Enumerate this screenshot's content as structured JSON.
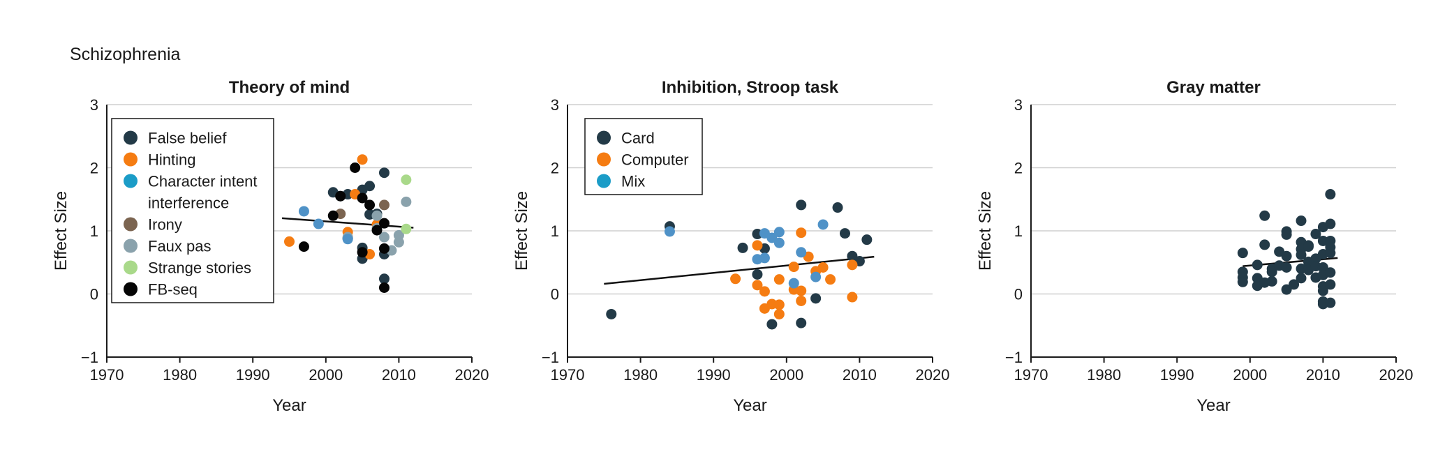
{
  "figure": {
    "label": "Schizophrenia"
  },
  "chart_data": [
    {
      "type": "scatter",
      "title": "Theory of mind",
      "xlabel": "Year",
      "ylabel": "Effect Size",
      "xlim": [
        1970,
        2020
      ],
      "ylim": [
        -1,
        3
      ],
      "xticks": [
        1970,
        1980,
        1990,
        2000,
        2010,
        2020
      ],
      "yticks": [
        -1,
        0,
        1,
        2,
        3
      ],
      "grid": "horizontal",
      "legend": "top-left, boxed",
      "series": [
        {
          "name": "False belief",
          "color": "#233a47",
          "points": [
            [
              2001,
              1.61
            ],
            [
              2002,
              1.55
            ],
            [
              2003,
              1.58
            ],
            [
              2003,
              0.88
            ],
            [
              2005,
              1.65
            ],
            [
              2005,
              0.73
            ],
            [
              2005,
              0.56
            ],
            [
              2006,
              1.71
            ],
            [
              2006,
              1.26
            ],
            [
              2007,
              1.27
            ],
            [
              2008,
              1.92
            ],
            [
              2008,
              0.63
            ],
            [
              2008,
              0.24
            ]
          ]
        },
        {
          "name": "Hinting",
          "color": "#f57c12",
          "points": [
            [
              1995,
              0.83
            ],
            [
              2003,
              0.98
            ],
            [
              2004,
              1.58
            ],
            [
              2005,
              2.13
            ],
            [
              2006,
              0.63
            ],
            [
              2007,
              1.1
            ]
          ]
        },
        {
          "name": "Character intent interference",
          "color": "#1b9cc7",
          "points": []
        },
        {
          "name": "Irony",
          "color": "#7b6450",
          "points": [
            [
              2002,
              1.27
            ],
            [
              2008,
              1.41
            ]
          ]
        },
        {
          "name": "Faux pas",
          "color": "#8aa2ac",
          "points": [
            [
              2003,
              0.9
            ],
            [
              2007,
              1.04
            ],
            [
              2008,
              0.9
            ],
            [
              2009,
              0.69
            ],
            [
              2010,
              0.82
            ],
            [
              2010,
              0.93
            ],
            [
              2011,
              1.46
            ],
            [
              2007,
              1.24
            ]
          ]
        },
        {
          "name": "Strange stories",
          "color": "#a9d98a",
          "points": [
            [
              2011,
              1.81
            ],
            [
              2011,
              1.03
            ]
          ]
        },
        {
          "name": "FB-seq",
          "color": "#050505",
          "points": [
            [
              1997,
              0.75
            ],
            [
              2001,
              1.24
            ],
            [
              2002,
              1.55
            ],
            [
              2004,
              2.0
            ],
            [
              2005,
              1.52
            ],
            [
              2005,
              0.66
            ],
            [
              2006,
              1.41
            ],
            [
              2007,
              1.01
            ],
            [
              2008,
              1.12
            ],
            [
              2008,
              0.72
            ],
            [
              2008,
              0.1
            ]
          ]
        },
        {
          "name": "",
          "color": "#4f92c7",
          "points": [
            [
              1997,
              1.31
            ],
            [
              1999,
              1.11
            ],
            [
              2003,
              0.87
            ]
          ]
        }
      ],
      "trend": [
        [
          1994,
          1.2
        ],
        [
          2012,
          1.05
        ]
      ]
    },
    {
      "type": "scatter",
      "title": "Inhibition, Stroop task",
      "xlabel": "Year",
      "ylabel": "Effect Size",
      "xlim": [
        1970,
        2020
      ],
      "ylim": [
        -1,
        3
      ],
      "xticks": [
        1970,
        1980,
        1990,
        2000,
        2010,
        2020
      ],
      "yticks": [
        -1,
        0,
        1,
        2,
        3
      ],
      "grid": "horizontal",
      "legend": "top-left, boxed",
      "series": [
        {
          "name": "Card",
          "color": "#233a47",
          "points": [
            [
              1976,
              -0.32
            ],
            [
              1984,
              1.07
            ],
            [
              1994,
              0.73
            ],
            [
              1996,
              0.95
            ],
            [
              1996,
              0.31
            ],
            [
              1997,
              0.72
            ],
            [
              1998,
              -0.48
            ],
            [
              2002,
              1.41
            ],
            [
              2002,
              -0.46
            ],
            [
              2004,
              -0.07
            ],
            [
              2007,
              1.37
            ],
            [
              2008,
              0.96
            ],
            [
              2009,
              0.6
            ],
            [
              2010,
              0.52
            ],
            [
              2011,
              0.86
            ]
          ]
        },
        {
          "name": "Computer",
          "color": "#f57c12",
          "points": [
            [
              1993,
              0.24
            ],
            [
              1996,
              0.77
            ],
            [
              1996,
              0.14
            ],
            [
              1997,
              0.04
            ],
            [
              1997,
              -0.23
            ],
            [
              1998,
              -0.16
            ],
            [
              1999,
              -0.17
            ],
            [
              1999,
              -0.32
            ],
            [
              1999,
              0.23
            ],
            [
              2001,
              0.43
            ],
            [
              2001,
              0.07
            ],
            [
              2002,
              0.97
            ],
            [
              2002,
              0.05
            ],
            [
              2002,
              -0.11
            ],
            [
              2003,
              0.59
            ],
            [
              2004,
              0.36
            ],
            [
              2005,
              0.42
            ],
            [
              2006,
              0.23
            ],
            [
              2009,
              0.46
            ],
            [
              2009,
              -0.05
            ]
          ]
        },
        {
          "name": "Mix",
          "color": "#1b9cc7",
          "points": []
        },
        {
          "name": "",
          "color": "#4f92c7",
          "points": [
            [
              1984,
              0.99
            ],
            [
              1996,
              0.55
            ],
            [
              1997,
              0.96
            ],
            [
              1997,
              0.57
            ],
            [
              1998,
              0.89
            ],
            [
              1999,
              0.81
            ],
            [
              1999,
              0.98
            ],
            [
              2001,
              0.17
            ],
            [
              2002,
              0.66
            ],
            [
              2004,
              0.27
            ],
            [
              2005,
              1.1
            ]
          ]
        }
      ],
      "trend": [
        [
          1975,
          0.16
        ],
        [
          2012,
          0.59
        ]
      ]
    },
    {
      "type": "scatter",
      "title": "Gray matter",
      "xlabel": "Year",
      "ylabel": "Effect Size",
      "xlim": [
        1970,
        2020
      ],
      "ylim": [
        -1,
        3
      ],
      "xticks": [
        1970,
        1980,
        1990,
        2000,
        2010,
        2020
      ],
      "yticks": [
        -1,
        0,
        1,
        2,
        3
      ],
      "grid": "horizontal",
      "series": [
        {
          "name": "",
          "color": "#233a47",
          "points": [
            [
              1999,
              0.65
            ],
            [
              1999,
              0.35
            ],
            [
              1999,
              0.26
            ],
            [
              1999,
              0.19
            ],
            [
              2001,
              0.46
            ],
            [
              2001,
              0.25
            ],
            [
              2001,
              0.13
            ],
            [
              2002,
              1.24
            ],
            [
              2002,
              0.78
            ],
            [
              2002,
              0.18
            ],
            [
              2003,
              0.4
            ],
            [
              2003,
              0.35
            ],
            [
              2003,
              0.2
            ],
            [
              2004,
              0.67
            ],
            [
              2004,
              0.45
            ],
            [
              2005,
              0.99
            ],
            [
              2005,
              0.94
            ],
            [
              2005,
              0.6
            ],
            [
              2005,
              0.42
            ],
            [
              2005,
              0.07
            ],
            [
              2006,
              0.15
            ],
            [
              2007,
              1.16
            ],
            [
              2007,
              0.82
            ],
            [
              2007,
              0.71
            ],
            [
              2007,
              0.62
            ],
            [
              2007,
              0.4
            ],
            [
              2007,
              0.25
            ],
            [
              2008,
              0.77
            ],
            [
              2008,
              0.75
            ],
            [
              2008,
              0.51
            ],
            [
              2008,
              0.38
            ],
            [
              2009,
              0.95
            ],
            [
              2009,
              0.56
            ],
            [
              2009,
              0.44
            ],
            [
              2009,
              0.26
            ],
            [
              2010,
              1.06
            ],
            [
              2010,
              0.84
            ],
            [
              2010,
              0.63
            ],
            [
              2010,
              0.42
            ],
            [
              2010,
              0.3
            ],
            [
              2010,
              0.12
            ],
            [
              2010,
              0.05
            ],
            [
              2010,
              -0.12
            ],
            [
              2010,
              -0.16
            ],
            [
              2011,
              1.58
            ],
            [
              2011,
              1.11
            ],
            [
              2011,
              0.84
            ],
            [
              2011,
              0.74
            ],
            [
              2011,
              0.65
            ],
            [
              2011,
              0.34
            ],
            [
              2011,
              0.15
            ],
            [
              2011,
              -0.14
            ]
          ]
        }
      ],
      "trend": [
        [
          1999,
          0.44
        ],
        [
          2012,
          0.57
        ]
      ]
    }
  ]
}
